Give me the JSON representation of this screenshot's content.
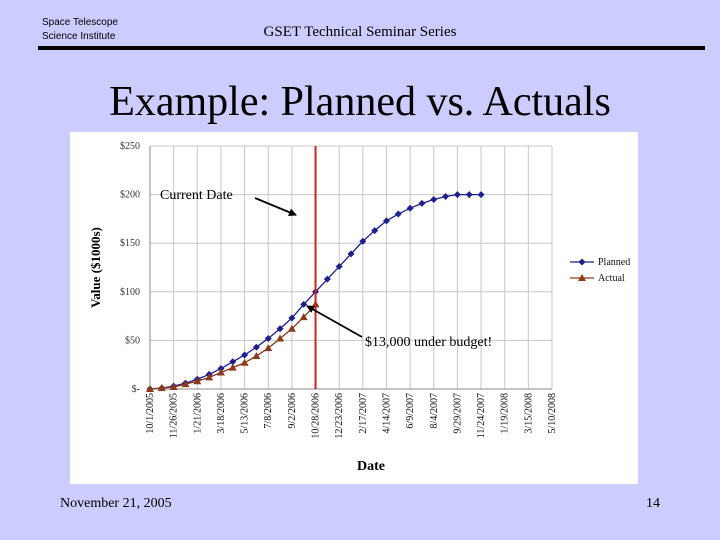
{
  "header": {
    "org_line1": "Space Telescope",
    "org_line2": "Science Institute",
    "series_title": "GSET Technical Seminar Series"
  },
  "slide": {
    "title": "Example: Planned vs. Actuals",
    "footer_date": "November 21, 2005",
    "page_number": "14"
  },
  "colors": {
    "background": "#ccccff",
    "planned": "#1f1f8f",
    "actual": "#8b3a1a",
    "current_date_line": "#cc2222"
  },
  "chart_data": {
    "type": "line",
    "xlabel": "Date",
    "ylabel": "Value ($1000s)",
    "categories": [
      "10/1/2005",
      "11/26/2005",
      "1/21/2006",
      "3/18/2006",
      "5/13/2006",
      "7/8/2006",
      "9/2/2006",
      "10/28/2006",
      "12/23/2006",
      "2/17/2007",
      "4/14/2007",
      "6/9/2007",
      "8/4/2007",
      "9/29/2007",
      "11/24/2007",
      "1/19/2008",
      "3/15/2008",
      "5/10/2008"
    ],
    "y_ticks": [
      "$-",
      "$50",
      "$100",
      "$150",
      "$200",
      "$250"
    ],
    "ylim": [
      0,
      250
    ],
    "grid": true,
    "legend_position": "right",
    "series": [
      {
        "name": "Planned",
        "marker": "diamond",
        "x": [
          0,
          0.5,
          1,
          1.5,
          2,
          2.5,
          3,
          3.5,
          4,
          4.5,
          5,
          5.5,
          6,
          6.5,
          7,
          7.5,
          8,
          8.5,
          9,
          9.5,
          10,
          10.5,
          11,
          11.5,
          12,
          12.5,
          13,
          13.5,
          14
        ],
        "y": [
          0,
          1,
          3,
          6,
          10,
          15,
          21,
          28,
          35,
          43,
          52,
          62,
          73,
          87,
          100,
          113,
          126,
          139,
          152,
          163,
          173,
          180,
          186,
          191,
          195,
          198,
          200,
          200,
          200
        ]
      },
      {
        "name": "Actual",
        "marker": "triangle",
        "x": [
          0,
          0.5,
          1,
          1.5,
          2,
          2.5,
          3,
          3.5,
          4,
          4.5,
          5,
          5.5,
          6,
          6.5,
          7
        ],
        "y": [
          0,
          1,
          2,
          5,
          8,
          12,
          17,
          22,
          27,
          34,
          42,
          52,
          62,
          74,
          87
        ]
      }
    ],
    "current_date_x": 7,
    "annotations": [
      {
        "text": "Current Date"
      },
      {
        "text": "$13,000 under budget!"
      }
    ]
  }
}
